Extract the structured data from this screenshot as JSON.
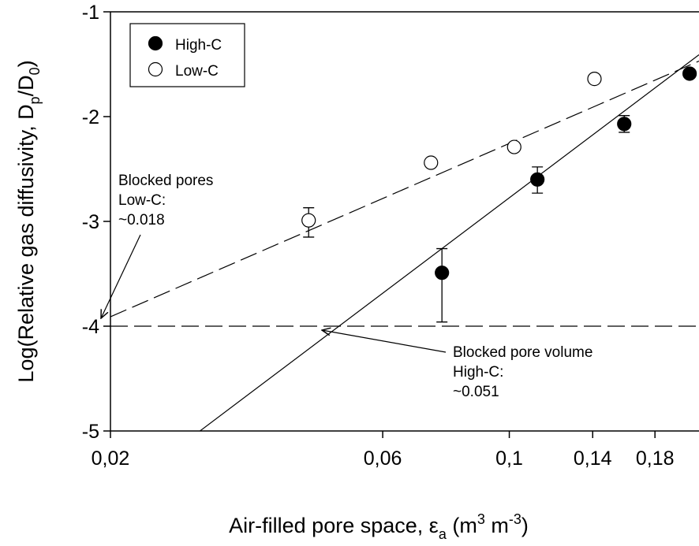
{
  "chart_data": {
    "type": "scatter",
    "ylabel": [
      "Log(Relative gas diffusivity, D",
      "p",
      "/D",
      "0",
      ")"
    ],
    "xlabel": [
      "Air-filled pore space, ε",
      "a",
      " (m",
      "3",
      " m",
      "-3",
      ")"
    ],
    "xscale": "log",
    "xlim": [
      0.02,
      0.215
    ],
    "ylim": [
      -5,
      -1
    ],
    "xticks": [
      {
        "value": 0.02,
        "label": "0,02"
      },
      {
        "value": 0.06,
        "label": "0,06"
      },
      {
        "value": 0.1,
        "label": "0,1"
      },
      {
        "value": 0.14,
        "label": "0,14"
      },
      {
        "value": 0.18,
        "label": "0,18"
      }
    ],
    "yticks": [
      -5,
      -4,
      -3,
      -2,
      -1
    ],
    "legend": "upper left",
    "series": [
      {
        "name": "High-C",
        "color": "#000000",
        "fill": "#000000",
        "x": [
          0.0762,
          0.112,
          0.159,
          0.207
        ],
        "values": [
          -3.49,
          -2.6,
          -2.07,
          -1.59
        ],
        "yerr_plus": [
          0.23,
          0.12,
          0.08,
          null
        ],
        "yerr_minus": [
          0.47,
          0.13,
          0.08,
          null
        ],
        "fit": {
          "style": "solid",
          "x": [
            0.0287,
            0.215
          ],
          "values": [
            -5,
            -1.41
          ]
        }
      },
      {
        "name": "Low-C",
        "color": "#000000",
        "fill": "#ffffff",
        "x": [
          0.0445,
          0.0729,
          0.102,
          0.141
        ],
        "values": [
          -2.99,
          -2.44,
          -2.29,
          -1.64
        ],
        "yerr_plus": [
          0.12,
          null,
          null,
          null
        ],
        "yerr_minus": [
          0.16,
          null,
          null,
          null
        ],
        "fit": {
          "style": "dashed",
          "x": [
            0.02,
            0.215
          ],
          "values": [
            -3.91,
            -1.47
          ]
        }
      }
    ],
    "reference_y": -4,
    "annotations": [
      {
        "lines": [
          "Blocked pores",
          "Low-C:",
          "~0.018"
        ]
      },
      {
        "lines": [
          "Blocked pore volume",
          "High-C:",
          "~0.051"
        ]
      }
    ]
  }
}
